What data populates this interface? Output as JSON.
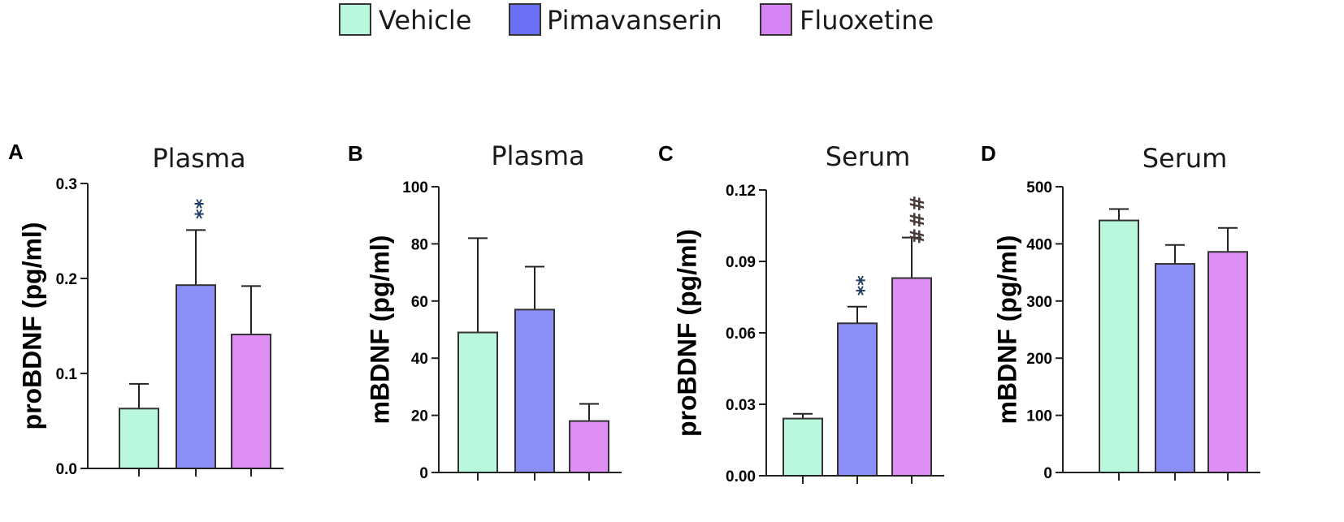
{
  "legend": [
    {
      "label": "Vehicle",
      "color": "#b9f8dc"
    },
    {
      "label": "Pimavanserin",
      "color": "#6b70f5"
    },
    {
      "label": "Fluoxetine",
      "color": "#d584f4"
    }
  ],
  "bar_colors": [
    "#b9f8dc",
    "#8c8ff7",
    "#de8ef5"
  ],
  "sig_colors": {
    "asterisk": "#1f3d66",
    "hash": "#4a3a3a"
  },
  "chart_data": [
    {
      "panel": "A",
      "type": "bar",
      "title": "Plasma",
      "ylabel": "proBDNF (pg/ml)",
      "categories": [
        "Vehicle",
        "Pimavanserin",
        "Fluoxetine"
      ],
      "values": [
        0.063,
        0.193,
        0.141
      ],
      "errors": [
        0.026,
        0.058,
        0.051
      ],
      "ylim": [
        0,
        0.3
      ],
      "yticks": [
        0.0,
        0.1,
        0.2,
        0.3
      ],
      "ytick_labels": [
        "0.0",
        "0.1",
        "0.2",
        "0.3"
      ],
      "annotations": [
        {
          "bar": 1,
          "text": "**",
          "kind": "asterisk",
          "stacked": true
        }
      ]
    },
    {
      "panel": "B",
      "type": "bar",
      "title": "Plasma",
      "ylabel": "mBDNF (pg/ml)",
      "categories": [
        "Vehicle",
        "Pimavanserin",
        "Fluoxetine"
      ],
      "values": [
        49,
        57,
        18
      ],
      "errors": [
        33,
        15,
        6
      ],
      "ylim": [
        0,
        100
      ],
      "yticks": [
        0,
        20,
        40,
        60,
        80,
        100
      ],
      "ytick_labels": [
        "0",
        "20",
        "40",
        "60",
        "80",
        "100"
      ],
      "annotations": []
    },
    {
      "panel": "C",
      "type": "bar",
      "title": "Serum",
      "ylabel": "proBDNF (pg/ml)",
      "categories": [
        "Vehicle",
        "Pimavanserin",
        "Fluoxetine"
      ],
      "values": [
        0.024,
        0.064,
        0.083
      ],
      "errors": [
        0.002,
        0.007,
        0.017
      ],
      "ylim": [
        0,
        0.12
      ],
      "yticks": [
        0.0,
        0.03,
        0.06,
        0.09,
        0.12
      ],
      "ytick_labels": [
        "0.00",
        "0.03",
        "0.06",
        "0.09",
        "0.12"
      ],
      "annotations": [
        {
          "bar": 1,
          "text": "**",
          "kind": "asterisk",
          "stacked": true
        },
        {
          "bar": 2,
          "text": "###",
          "kind": "hash",
          "stacked": false
        }
      ]
    },
    {
      "panel": "D",
      "type": "bar",
      "title": "Serum",
      "ylabel": "mBDNF (pg/ml)",
      "categories": [
        "Vehicle",
        "Pimavanserin",
        "Fluoxetine"
      ],
      "values": [
        441,
        365,
        386
      ],
      "errors": [
        20,
        33,
        42
      ],
      "ylim": [
        0,
        500
      ],
      "yticks": [
        0,
        100,
        200,
        300,
        400,
        500
      ],
      "ytick_labels": [
        "0",
        "100",
        "200",
        "300",
        "400",
        "500"
      ],
      "annotations": []
    }
  ]
}
